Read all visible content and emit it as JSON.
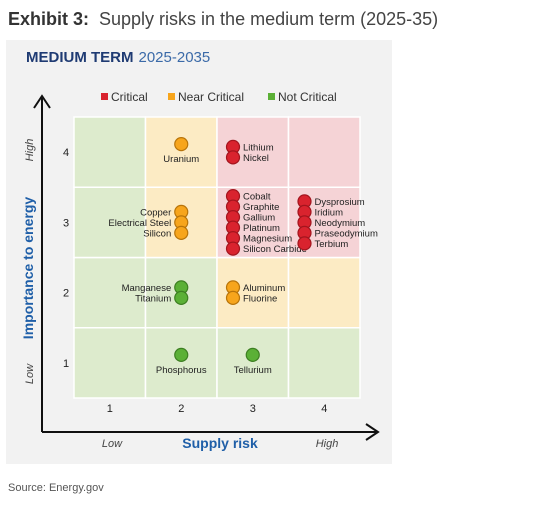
{
  "header": {
    "exhibit_label": "Exhibit 3:",
    "title": "Supply risks in the medium term (2025-35)"
  },
  "source": "Source: Energy.gov",
  "chart_data": {
    "type": "scatter",
    "title": "MEDIUM TERM",
    "title_years": "2025-2035",
    "xlabel": "Supply risk",
    "ylabel": "Importance to energy",
    "x_low_label": "Low",
    "x_high_label": "High",
    "y_low_label": "Low",
    "y_high_label": "High",
    "xlim": [
      0.5,
      4.5
    ],
    "ylim": [
      0.5,
      4.5
    ],
    "x_ticks": [
      1,
      2,
      3,
      4
    ],
    "y_ticks": [
      1,
      2,
      3,
      4
    ],
    "legend_position": "top",
    "legend": [
      {
        "label": "Critical",
        "color": "#d9232e"
      },
      {
        "label": "Near Critical",
        "color": "#f7a51c"
      },
      {
        "label": "Not Critical",
        "color": "#5bb036"
      }
    ],
    "zone_colors": {
      "critical": "#f5d3d6",
      "near": "#fcebc4",
      "not": "#ddebcd"
    },
    "cell_zones": [
      [
        "not",
        "not",
        "not",
        "not"
      ],
      [
        "not",
        "not",
        "near",
        "near"
      ],
      [
        "not",
        "near",
        "critical",
        "critical"
      ],
      [
        "not",
        "near",
        "critical",
        "critical"
      ]
    ],
    "groups": [
      {
        "x": 2,
        "y": 4,
        "status": "near",
        "materials": [
          "Uranium"
        ]
      },
      {
        "x": 3,
        "y": 4,
        "status": "critical",
        "materials": [
          "Lithium",
          "Nickel"
        ]
      },
      {
        "x": 2,
        "y": 3,
        "status": "near",
        "materials": [
          "Copper",
          "Electrical Steel",
          "Silicon"
        ]
      },
      {
        "x": 3,
        "y": 3,
        "status": "critical",
        "materials": [
          "Cobalt",
          "Graphite",
          "Gallium",
          "Platinum",
          "Magnesium",
          "Silicon Carbide"
        ]
      },
      {
        "x": 4,
        "y": 3,
        "status": "critical",
        "materials": [
          "Dysprosium",
          "Iridium",
          "Neodymium",
          "Praseodymium",
          "Terbium"
        ]
      },
      {
        "x": 2,
        "y": 2,
        "status": "not",
        "materials": [
          "Manganese",
          "Titanium"
        ]
      },
      {
        "x": 3,
        "y": 2,
        "status": "near",
        "materials": [
          "Aluminum",
          "Fluorine"
        ]
      },
      {
        "x": 2,
        "y": 1,
        "status": "not",
        "materials": [
          "Phosphorus"
        ]
      },
      {
        "x": 3,
        "y": 1,
        "status": "not",
        "materials": [
          "Tellurium"
        ]
      }
    ]
  }
}
